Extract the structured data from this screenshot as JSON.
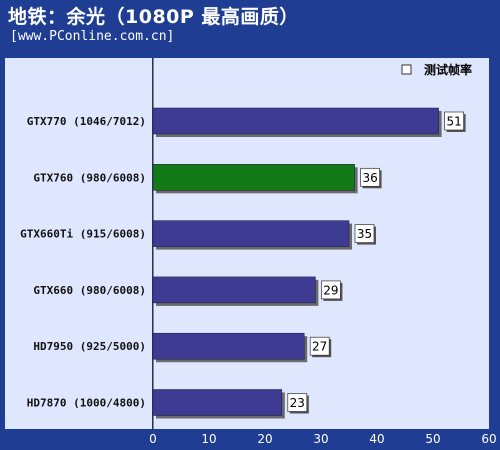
{
  "header": {
    "title": "地铁：余光（1080P 最高画质）",
    "subtitle": "[www.PConline.com.cn]"
  },
  "legend": {
    "label": "测试帧率"
  },
  "colors": {
    "background": "#1f3d92",
    "plot_bg": "#dfe7ff",
    "bar_default": "#3e3c92",
    "bar_highlight": "#137a18",
    "label_panel": "#dfe7ff"
  },
  "chart_data": {
    "type": "bar",
    "orientation": "horizontal",
    "title": "地铁：余光（1080P 最高画质）",
    "categories": [
      "GTX770 (1046/7012)",
      "GTX760 (980/6008)",
      "GTX660Ti (915/6008)",
      "GTX660 (980/6008)",
      "HD7950 (925/5000)",
      "HD7870 (1000/4800)"
    ],
    "series": [
      {
        "name": "测试帧率",
        "values": [
          51,
          36,
          35,
          29,
          27,
          23
        ]
      }
    ],
    "highlight_index": 1,
    "xlim": [
      0,
      60
    ],
    "xticks": [
      0,
      10,
      20,
      30,
      40,
      50,
      60
    ],
    "grid": false,
    "legend_position": "top-right"
  }
}
